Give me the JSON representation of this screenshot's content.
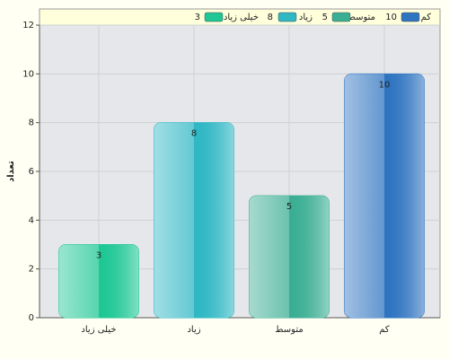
{
  "chart_data": {
    "type": "bar",
    "y_label": "تعداد",
    "categories": [
      "خیلی زیاد",
      "زیاد",
      "متوسط",
      "کم"
    ],
    "values": [
      3,
      8,
      5,
      10
    ],
    "colors": [
      "#1fc795",
      "#2fb7c4",
      "#3aae93",
      "#2f74c0"
    ],
    "ylim": [
      0,
      12
    ],
    "yticks": [
      0,
      2,
      4,
      6,
      8,
      10,
      12
    ],
    "grid": true
  }
}
